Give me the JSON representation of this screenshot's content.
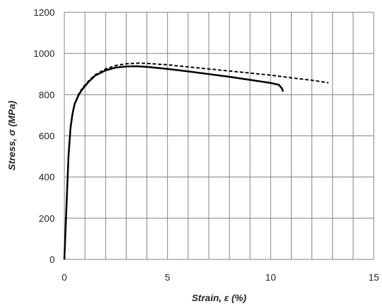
{
  "chart_data": {
    "type": "line",
    "title": "",
    "xlabel": "Strain, ε (%)",
    "ylabel": "Stress, σ (MPa)",
    "xlim": [
      0,
      15
    ],
    "ylim": [
      0,
      1200
    ],
    "x_ticks": [
      0,
      5,
      10,
      15
    ],
    "y_ticks": [
      0,
      200,
      400,
      600,
      800,
      1000,
      1200
    ],
    "x_minor_grid_step": 1,
    "y_grid_step": 200,
    "grid": true,
    "legend": "none",
    "series": [
      {
        "style": "solid",
        "color": "#000000",
        "x": [
          0,
          0.1,
          0.2,
          0.3,
          0.4,
          0.5,
          0.7,
          0.9,
          1.2,
          1.5,
          2.0,
          2.5,
          3.0,
          3.5,
          4.0,
          5.0,
          6.0,
          7.0,
          8.0,
          9.0,
          10.0,
          10.4,
          10.55,
          10.6
        ],
        "y": [
          0,
          250,
          500,
          640,
          710,
          755,
          800,
          830,
          865,
          893,
          918,
          932,
          937,
          938,
          935,
          925,
          913,
          900,
          887,
          872,
          857,
          848,
          830,
          815
        ]
      },
      {
        "style": "dashed",
        "color": "#000000",
        "x": [
          0,
          0.1,
          0.2,
          0.3,
          0.4,
          0.5,
          0.7,
          0.9,
          1.2,
          1.5,
          2.0,
          2.5,
          3.0,
          3.5,
          4.0,
          5.0,
          6.0,
          7.0,
          8.0,
          9.0,
          10.0,
          11.0,
          12.0,
          12.8
        ],
        "y": [
          0,
          250,
          500,
          640,
          710,
          757,
          805,
          835,
          870,
          897,
          925,
          942,
          950,
          953,
          952,
          945,
          935,
          925,
          915,
          905,
          895,
          882,
          870,
          858
        ]
      }
    ]
  }
}
